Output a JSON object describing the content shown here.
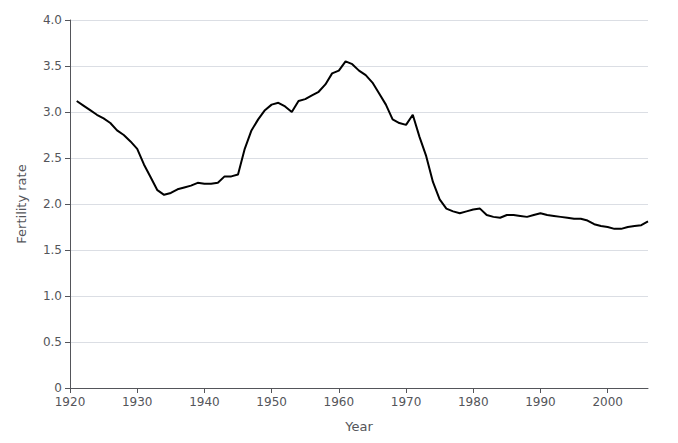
{
  "chart_data": {
    "type": "line",
    "xlabel": "Year",
    "ylabel": "Fertility rate",
    "color": "#000000",
    "xlim": [
      1920,
      2006
    ],
    "ylim": [
      0,
      4.0
    ],
    "xticks": [
      1920,
      1930,
      1940,
      1950,
      1960,
      1970,
      1980,
      1990,
      2000
    ],
    "yticks": [
      0,
      0.5,
      {
        "value": 1.0,
        "label": "1.0"
      },
      1.5,
      {
        "value": 2.0,
        "label": "2.0"
      },
      2.5,
      {
        "value": 3.0,
        "label": "3.0"
      },
      3.5,
      {
        "value": 4.0,
        "label": "4.0"
      }
    ],
    "grid": true,
    "x": [
      1921,
      1922,
      1923,
      1924,
      1925,
      1926,
      1927,
      1928,
      1929,
      1930,
      1931,
      1932,
      1933,
      1934,
      1935,
      1936,
      1937,
      1938,
      1939,
      1940,
      1941,
      1942,
      1943,
      1944,
      1945,
      1946,
      1947,
      1948,
      1949,
      1950,
      1951,
      1952,
      1953,
      1954,
      1955,
      1956,
      1957,
      1958,
      1959,
      1960,
      1961,
      1962,
      1963,
      1964,
      1965,
      1966,
      1967,
      1968,
      1969,
      1970,
      1971,
      1972,
      1973,
      1974,
      1975,
      1976,
      1977,
      1978,
      1979,
      1980,
      1981,
      1982,
      1983,
      1984,
      1985,
      1986,
      1987,
      1988,
      1989,
      1990,
      1991,
      1992,
      1993,
      1994,
      1995,
      1996,
      1997,
      1998,
      1999,
      2000,
      2001,
      2002,
      2003,
      2004,
      2005,
      2006
    ],
    "values": [
      3.12,
      3.07,
      3.02,
      2.97,
      2.93,
      2.88,
      2.8,
      2.75,
      2.68,
      2.6,
      2.43,
      2.29,
      2.15,
      2.1,
      2.12,
      2.16,
      2.18,
      2.2,
      2.23,
      2.22,
      2.22,
      2.23,
      2.3,
      2.3,
      2.32,
      2.6,
      2.8,
      2.92,
      3.02,
      3.08,
      3.1,
      3.06,
      3.0,
      3.12,
      3.14,
      3.18,
      3.22,
      3.3,
      3.42,
      3.45,
      3.55,
      3.52,
      3.45,
      3.4,
      3.32,
      3.2,
      3.08,
      2.92,
      2.88,
      2.86,
      2.97,
      2.73,
      2.52,
      2.24,
      2.05,
      1.95,
      1.92,
      1.9,
      1.92,
      1.94,
      1.95,
      1.88,
      1.86,
      1.85,
      1.88,
      1.88,
      1.87,
      1.86,
      1.88,
      1.9,
      1.88,
      1.87,
      1.86,
      1.85,
      1.84,
      1.84,
      1.82,
      1.78,
      1.76,
      1.75,
      1.73,
      1.73,
      1.75,
      1.76,
      1.77,
      1.81
    ]
  }
}
